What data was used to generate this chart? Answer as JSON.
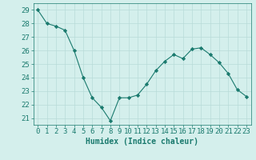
{
  "x": [
    0,
    1,
    2,
    3,
    4,
    5,
    6,
    7,
    8,
    9,
    10,
    11,
    12,
    13,
    14,
    15,
    16,
    17,
    18,
    19,
    20,
    21,
    22,
    23
  ],
  "y": [
    29,
    28,
    27.8,
    27.5,
    26,
    24,
    22.5,
    21.8,
    20.8,
    22.5,
    22.5,
    22.7,
    23.5,
    24.5,
    25.2,
    25.7,
    25.4,
    26.1,
    26.2,
    25.7,
    25.1,
    24.3,
    23.1,
    22.6
  ],
  "line_color": "#1a7a6e",
  "marker": "D",
  "marker_size": 2.2,
  "bg_color": "#d4efec",
  "grid_color": "#b8dbd8",
  "xlabel": "Humidex (Indice chaleur)",
  "ylim": [
    20.5,
    29.5
  ],
  "xlim": [
    -0.5,
    23.5
  ],
  "yticks": [
    21,
    22,
    23,
    24,
    25,
    26,
    27,
    28,
    29
  ],
  "xticks": [
    0,
    1,
    2,
    3,
    4,
    5,
    6,
    7,
    8,
    9,
    10,
    11,
    12,
    13,
    14,
    15,
    16,
    17,
    18,
    19,
    20,
    21,
    22,
    23
  ],
  "tick_color": "#1a7a6e",
  "label_color": "#1a7a6e",
  "font_size": 6.5
}
